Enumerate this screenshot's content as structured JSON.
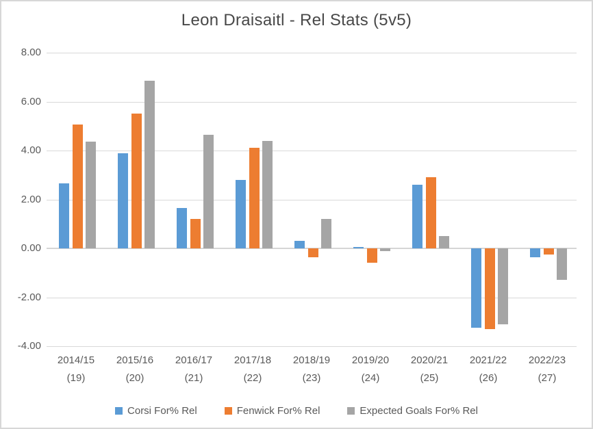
{
  "chart_data": {
    "type": "bar",
    "title": "Leon Draisaitl - Rel Stats (5v5)",
    "categories": [
      {
        "season": "2014/15",
        "age": "(19)"
      },
      {
        "season": "2015/16",
        "age": "(20)"
      },
      {
        "season": "2016/17",
        "age": "(21)"
      },
      {
        "season": "2017/18",
        "age": "(22)"
      },
      {
        "season": "2018/19",
        "age": "(23)"
      },
      {
        "season": "2019/20",
        "age": "(24)"
      },
      {
        "season": "2020/21",
        "age": "(25)"
      },
      {
        "season": "2021/22",
        "age": "(26)"
      },
      {
        "season": "2022/23",
        "age": "(27)"
      }
    ],
    "series": [
      {
        "name": "Corsi For% Rel",
        "color": "#5B9BD5",
        "values": [
          2.65,
          3.9,
          1.65,
          2.8,
          0.3,
          0.05,
          2.6,
          -3.25,
          -0.35
        ]
      },
      {
        "name": "Fenwick For% Rel",
        "color": "#ED7D31",
        "values": [
          5.05,
          5.5,
          1.2,
          4.1,
          -0.35,
          -0.6,
          2.9,
          -3.3,
          -0.25
        ]
      },
      {
        "name": "Expected Goals For% Rel",
        "color": "#A5A5A5",
        "values": [
          4.35,
          6.85,
          4.65,
          4.4,
          1.2,
          -0.1,
          0.5,
          -3.1,
          -1.3
        ]
      }
    ],
    "ylim": [
      -4,
      8
    ],
    "yticks": [
      8,
      6,
      4,
      2,
      0,
      -2,
      -4
    ],
    "ytick_labels": [
      "8.00",
      "6.00",
      "4.00",
      "2.00",
      "0.00",
      "-2.00",
      "-4.00"
    ],
    "xlabel": "",
    "ylabel": "",
    "grid": true,
    "legend_position": "bottom"
  },
  "style": {
    "gridline_color": "#D9D9D9",
    "axis_text_color": "#595959",
    "title_color": "#484848",
    "border_color": "#D7D7D7",
    "background": "#FFFFFF"
  }
}
